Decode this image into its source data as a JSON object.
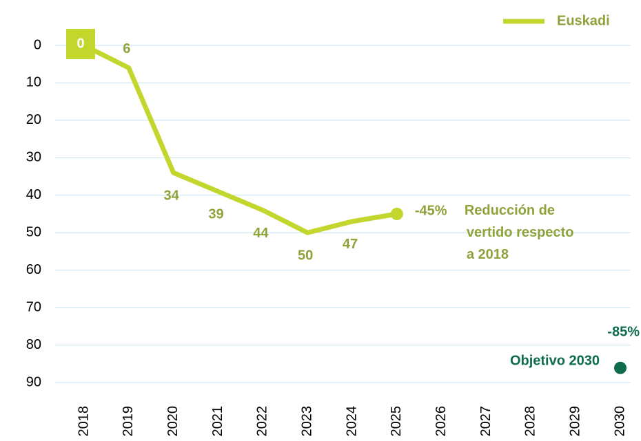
{
  "chart_data": {
    "type": "line",
    "categories": [
      "2018",
      "2019",
      "2020",
      "2021",
      "2022",
      "2023",
      "2024",
      "2025",
      "2026",
      "2027",
      "2028",
      "2029",
      "2030"
    ],
    "series": [
      {
        "name": "Euskadi",
        "color": "#c3d62d",
        "values": [
          0,
          6,
          34,
          39,
          44,
          50,
          47,
          45,
          null,
          null,
          null,
          null,
          null
        ],
        "value_labels": [
          "0",
          "6",
          "34",
          "39",
          "44",
          "50",
          "47",
          "-45%",
          null,
          null,
          null,
          null,
          null
        ]
      }
    ],
    "annotation": [
      "Reducción de",
      "vertido respecto",
      "a 2018"
    ],
    "target": {
      "x": "2030",
      "value": 85,
      "value_label": "-85%",
      "label": "Objetivo 2030",
      "color": "#0e6b4e"
    },
    "ylim": [
      0,
      90
    ],
    "yticks": [
      0,
      10,
      20,
      30,
      40,
      50,
      60,
      70,
      80,
      90
    ],
    "y_inverted": true,
    "grid": true,
    "legend": "top-right",
    "label_color": "#8ea23a"
  }
}
